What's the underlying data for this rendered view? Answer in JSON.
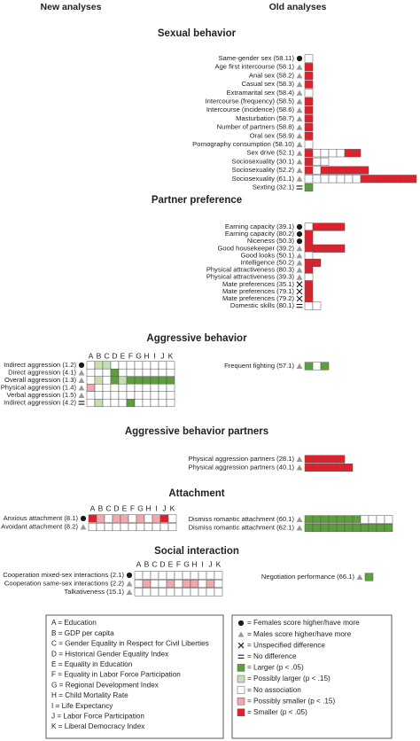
{
  "headers": {
    "new": "New analyses",
    "old": "Old analyses"
  },
  "sections": [
    {
      "title": "Sexual behavior",
      "old": {
        "rows": [
          {
            "label": "Same-gender sex (58.11)",
            "symbol": "circle",
            "cells": [
              "#ffffff"
            ]
          },
          {
            "label": "Age first intercourse (58.1)",
            "symbol": "triangle",
            "cells": [
              "#e0202a"
            ]
          },
          {
            "label": "Anal sex (58.2)",
            "symbol": "triangle",
            "cells": [
              "#e0202a"
            ]
          },
          {
            "label": "Casual sex (58.3)",
            "symbol": "triangle",
            "cells": [
              "#e0202a"
            ]
          },
          {
            "label": "Extramarital sex (58.4)",
            "symbol": "triangle",
            "cells": [
              "#ffffff"
            ]
          },
          {
            "label": "Intercourse (frequency) (58.5)",
            "symbol": "triangle",
            "cells": [
              "#e0202a"
            ]
          },
          {
            "label": "Intercourse (incidence) (58.6)",
            "symbol": "triangle",
            "cells": [
              "#e0202a"
            ]
          },
          {
            "label": "Masturbation (58.7)",
            "symbol": "triangle",
            "cells": [
              "#e0202a"
            ]
          },
          {
            "label": "Number of partners (58.8)",
            "symbol": "triangle",
            "cells": [
              "#e0202a"
            ]
          },
          {
            "label": "Oral sex (58.9)",
            "symbol": "triangle",
            "cells": [
              "#e0202a"
            ]
          },
          {
            "label": "Pornography consumption (58.10)",
            "symbol": "triangle",
            "cells": [
              "#ffffff"
            ]
          },
          {
            "label": "Sex drive (52.1)",
            "symbol": "triangle",
            "cells": [
              "#e0202a",
              "#ffffff",
              "#ffffff",
              "#ffffff",
              "#ffffff",
              "#e0202a",
              "#e0202a"
            ]
          },
          {
            "label": "Sociosexuality (30.1)",
            "symbol": "triangle",
            "cells": [
              "#e0202a",
              "#ffffff",
              "#ffffff"
            ]
          },
          {
            "label": "Sociosexuality (52.2)",
            "symbol": "triangle",
            "cells": [
              "#e0202a",
              "#ffffff",
              "#e0202a",
              "#e0202a",
              "#e0202a",
              "#e0202a",
              "#e0202a",
              "#e0202a"
            ]
          },
          {
            "label": "Sociosexuality (61.1)",
            "symbol": "triangle",
            "cells": [
              "#ffffff",
              "#ffffff",
              "#ffffff",
              "#ffffff",
              "#ffffff",
              "#ffffff",
              "#ffffff",
              "#e0202a",
              "#e0202a",
              "#e0202a",
              "#e0202a",
              "#e0202a",
              "#e0202a",
              "#e0202a"
            ]
          },
          {
            "label": "Sexting (32.1)",
            "symbol": "equals",
            "cells": [
              "#5f9e3e"
            ]
          }
        ]
      }
    },
    {
      "title": "Partner preference",
      "old": {
        "rows": [
          {
            "label": "Earning capacity (39.1)",
            "symbol": "circle",
            "cells": [
              "#ffffff",
              "#e0202a",
              "#e0202a",
              "#e0202a",
              "#e0202a"
            ]
          },
          {
            "label": "Earning capacity (80.2)",
            "symbol": "circle",
            "cells": [
              "#e0202a"
            ]
          },
          {
            "label": "Niceness (50.3)",
            "symbol": "circle",
            "cells": [
              "#e0202a"
            ]
          },
          {
            "label": "Good housekeeper (39.2)",
            "symbol": "triangle",
            "cells": [
              "#e0202a",
              "#e0202a",
              "#e0202a",
              "#e0202a",
              "#e0202a"
            ]
          },
          {
            "label": "Good looks (50.1)",
            "symbol": "triangle",
            "cells": [
              "#ffffff"
            ]
          },
          {
            "label": "Intelligence (50.2)",
            "symbol": "triangle",
            "cells": [
              "#e0202a",
              "#e0202a"
            ]
          },
          {
            "label": "Physical attractiveness (80.3)",
            "symbol": "triangle",
            "cells": [
              "#e0202a"
            ]
          },
          {
            "label": "Physical attractiveness (39.3)",
            "symbol": "triangle",
            "cells": [
              "#ffffff"
            ]
          },
          {
            "label": "Mate preferences (35.1)",
            "symbol": "x",
            "cells": [
              "#e0202a"
            ]
          },
          {
            "label": "Mate preferences (79.1)",
            "symbol": "x",
            "cells": [
              "#e0202a"
            ]
          },
          {
            "label": "Mate preferences (79.2)",
            "symbol": "x",
            "cells": [
              "#e0202a"
            ]
          },
          {
            "label": "Domestic skills (80.1)",
            "symbol": "equals",
            "cells": [
              "#ffffff",
              "#ffffff"
            ]
          }
        ]
      }
    },
    {
      "title": "Aggressive behavior",
      "new": {
        "columns": [
          "A",
          "B",
          "C",
          "D",
          "E",
          "F",
          "G",
          "H",
          "I",
          "J",
          "K"
        ],
        "rows": [
          {
            "label": "Indirect aggression (1.2)",
            "symbol": "circle",
            "cells": [
              "#ffffff",
              "#c4e0b0",
              "#c4e0b0",
              "#ffffff",
              "#ffffff",
              "#ffffff",
              "#ffffff",
              "#ffffff",
              "#ffffff",
              "#ffffff",
              "#ffffff"
            ]
          },
          {
            "label": "Direct aggression (4.1)",
            "symbol": "triangle",
            "cells": [
              "#ffffff",
              "#ffffff",
              "#ffffff",
              "#5f9e3e",
              "#ffffff",
              "#ffffff",
              "#ffffff",
              "#ffffff",
              "#ffffff",
              "#ffffff",
              "#ffffff"
            ]
          },
          {
            "label": "Overall aggression (1.3)",
            "symbol": "triangle",
            "cells": [
              "#ffffff",
              "#c4e0b0",
              "#ffffff",
              "#5f9e3e",
              "#c4e0b0",
              "#5f9e3e",
              "#5f9e3e",
              "#5f9e3e",
              "#5f9e3e",
              "#5f9e3e",
              "#5f9e3e"
            ]
          },
          {
            "label": "Physical aggression (1.4)",
            "symbol": "triangle",
            "cells": [
              "#f2a7ad",
              "#ffffff",
              "#ffffff",
              "#ffffff",
              "#ffffff",
              "#ffffff",
              "#ffffff",
              "#ffffff",
              "#ffffff",
              "#ffffff",
              "#ffffff"
            ]
          },
          {
            "label": "Verbal aggression (1.5)",
            "symbol": "triangle",
            "cells": [
              "#ffffff",
              "#ffffff",
              "#ffffff",
              "#ffffff",
              "#ffffff",
              "#ffffff",
              "#ffffff",
              "#ffffff",
              "#ffffff",
              "#ffffff",
              "#ffffff"
            ]
          },
          {
            "label": "Indirect aggression (4.2)",
            "symbol": "equals",
            "cells": [
              "#ffffff",
              "#c4e0b0",
              "#ffffff",
              "#ffffff",
              "#ffffff",
              "#5f9e3e",
              "#ffffff",
              "#ffffff",
              "#ffffff",
              "#ffffff",
              "#ffffff"
            ]
          }
        ]
      },
      "old": {
        "rows": [
          {
            "label": "Frequent fighting (57.1)",
            "symbol": "triangle",
            "cells": [
              "#5f9e3e",
              "#ffffff",
              "#5f9e3e"
            ]
          }
        ]
      }
    },
    {
      "title": "Aggressive behavior partners",
      "old": {
        "rows": [
          {
            "label": "Physical aggression partners (28.1)",
            "symbol": "triangle",
            "cells": [
              "#e0202a",
              "#e0202a",
              "#e0202a",
              "#e0202a",
              "#e0202a"
            ]
          },
          {
            "label": "Physical aggression partners (40.1)",
            "symbol": "triangle",
            "cells": [
              "#e0202a",
              "#e0202a",
              "#e0202a",
              "#e0202a",
              "#e0202a",
              "#e0202a"
            ]
          }
        ]
      }
    },
    {
      "title": "Attachment",
      "new": {
        "columns": [
          "A",
          "B",
          "C",
          "D",
          "E",
          "F",
          "G",
          "H",
          "I",
          "J",
          "K"
        ],
        "rows": [
          {
            "label": "Anxious attachment (8.1)",
            "symbol": "circle",
            "cells": [
              "#e0202a",
              "#f2a7ad",
              "#ffffff",
              "#f2a7ad",
              "#f2a7ad",
              "#ffffff",
              "#f2a7ad",
              "#ffffff",
              "#f2a7ad",
              "#e0202a",
              "#ffffff"
            ]
          },
          {
            "label": "Avoidant attachment (8.2)",
            "symbol": "triangle",
            "cells": [
              "#ffffff",
              "#ffffff",
              "#ffffff",
              "#ffffff",
              "#ffffff",
              "#ffffff",
              "#ffffff",
              "#ffffff",
              "#ffffff",
              "#ffffff",
              "#ffffff"
            ]
          }
        ]
      },
      "old": {
        "rows": [
          {
            "label": "Dismiss romantic attachment (60.1)",
            "symbol": "triangle",
            "cells": [
              "#5f9e3e",
              "#5f9e3e",
              "#5f9e3e",
              "#5f9e3e",
              "#5f9e3e",
              "#5f9e3e",
              "#5f9e3e",
              "#ffffff",
              "#ffffff",
              "#ffffff",
              "#ffffff"
            ]
          },
          {
            "label": "Dismiss romantic attachment (62.1)",
            "symbol": "triangle",
            "cells": [
              "#5f9e3e",
              "#5f9e3e",
              "#5f9e3e",
              "#5f9e3e",
              "#5f9e3e",
              "#5f9e3e",
              "#5f9e3e",
              "#5f9e3e",
              "#5f9e3e",
              "#5f9e3e",
              "#5f9e3e"
            ]
          }
        ]
      }
    },
    {
      "title": "Social interaction",
      "new": {
        "columns": [
          "A",
          "B",
          "C",
          "D",
          "E",
          "F",
          "G",
          "H",
          "I",
          "J",
          "K"
        ],
        "rows": [
          {
            "label": "Cooperation mixed-sex interactions (2.1)",
            "symbol": "circle",
            "cells": [
              "#ffffff",
              "#ffffff",
              "#ffffff",
              "#ffffff",
              "#ffffff",
              "#ffffff",
              "#ffffff",
              "#ffffff",
              "#ffffff",
              "#ffffff",
              "#ffffff"
            ]
          },
          {
            "label": "Cooperation same-sex interactions (2.2)",
            "symbol": "triangle",
            "cells": [
              "#ffffff",
              "#f2a7ad",
              "#ffffff",
              "#ffffff",
              "#f2a7ad",
              "#ffffff",
              "#f2a7ad",
              "#f2a7ad",
              "#ffffff",
              "#f2a7ad",
              "#ffffff"
            ]
          },
          {
            "label": "Talkativeness (15.1)",
            "symbol": "triangle",
            "cells": [
              "#ffffff",
              "#ffffff",
              "#ffffff",
              "#ffffff",
              "#ffffff",
              "#ffffff",
              "#ffffff",
              "#ffffff",
              "#ffffff",
              "#ffffff",
              "#ffffff"
            ]
          }
        ]
      },
      "old": {
        "rows": [
          {
            "label": "Negotiation performance (66.1)",
            "symbol": "triangle",
            "cells": [
              "#5f9e3e"
            ]
          }
        ]
      }
    }
  ],
  "legend": {
    "variables": [
      "A = Education",
      "B = GDP per capita",
      "C = Gender Equality in Respect for Civil Liberties",
      "D = Historical Gender Equality Index",
      "E = Equality in Education",
      "F = Equality in Labor Force Participation",
      "G = Regional Development Index",
      "H = Child Mortality Rate",
      "I = Life Expectancy",
      "J = Labor Force Participation",
      "K = Liberal Democracy Index"
    ],
    "symbols": [
      {
        "symbol": "circle",
        "label": "= Females score higher/have more"
      },
      {
        "symbol": "triangle",
        "label": "= Males score higher/have more"
      },
      {
        "symbol": "x",
        "label": "= Unspecified difference"
      },
      {
        "symbol": "equals",
        "label": "= No difference"
      }
    ],
    "colors": [
      {
        "color": "#5f9e3e",
        "label": "= Larger (p < .05)"
      },
      {
        "color": "#c4e0b0",
        "label": "= Possibly larger (p < .15)"
      },
      {
        "color": "#ffffff",
        "label": "= No association"
      },
      {
        "color": "#f2a7ad",
        "label": "= Possibly smaller (p < .15)"
      },
      {
        "color": "#e0202a",
        "label": "= Smaller (p < .05)"
      }
    ]
  }
}
